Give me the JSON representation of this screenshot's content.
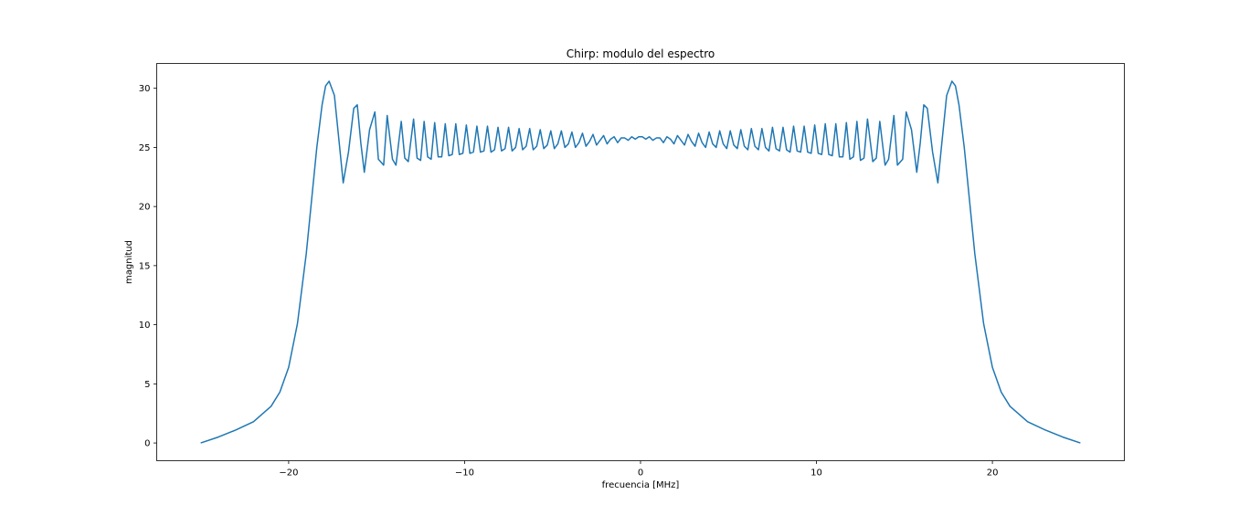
{
  "chart_data": {
    "type": "line",
    "title": "Chirp: modulo del espectro",
    "xlabel": "frecuencia [MHz]",
    "ylabel": "magnitud",
    "xlim": [
      -27.5,
      27.5
    ],
    "ylim": [
      -1.5,
      32.1
    ],
    "xticks": [
      -20,
      -10,
      0,
      10,
      20
    ],
    "xtick_labels": [
      "−20",
      "−10",
      "0",
      "10",
      "20"
    ],
    "yticks": [
      0,
      5,
      10,
      15,
      20,
      25,
      30
    ],
    "ytick_labels": [
      "0",
      "5",
      "10",
      "15",
      "20",
      "25",
      "30"
    ],
    "grid": false,
    "legend": "none",
    "line_color": "#1f77b4",
    "series": [
      {
        "x": [
          -25.0,
          -24.0,
          -23.0,
          -22.0,
          -21.0,
          -20.5,
          -20.0,
          -19.5,
          -19.0,
          -18.7,
          -18.4,
          -18.1,
          -17.9,
          -17.7,
          -17.4,
          -17.1,
          -16.9,
          -16.6,
          -16.3,
          -16.1,
          -15.9,
          -15.7,
          -15.4,
          -15.1,
          -14.9,
          -14.6,
          -14.4,
          -14.1,
          -13.9,
          -13.6,
          -13.4,
          -13.2,
          -12.9,
          -12.7,
          -12.5,
          -12.3,
          -12.1,
          -11.9,
          -11.7,
          -11.5,
          -11.3,
          -11.1,
          -10.9,
          -10.7,
          -10.5,
          -10.3,
          -10.1,
          -9.9,
          -9.7,
          -9.5,
          -9.3,
          -9.1,
          -8.9,
          -8.7,
          -8.5,
          -8.3,
          -8.1,
          -7.9,
          -7.7,
          -7.5,
          -7.3,
          -7.1,
          -6.9,
          -6.7,
          -6.5,
          -6.3,
          -6.1,
          -5.9,
          -5.7,
          -5.5,
          -5.3,
          -5.1,
          -4.9,
          -4.7,
          -4.5,
          -4.3,
          -4.1,
          -3.9,
          -3.7,
          -3.5,
          -3.3,
          -3.1,
          -2.9,
          -2.7,
          -2.5,
          -2.3,
          -2.1,
          -1.9,
          -1.7,
          -1.5,
          -1.3,
          -1.1,
          -0.9,
          -0.7,
          -0.5,
          -0.3,
          -0.1,
          0.1,
          0.3,
          0.5,
          0.7,
          0.9,
          1.1,
          1.3,
          1.5,
          1.7,
          1.9,
          2.1,
          2.3,
          2.5,
          2.7,
          2.9,
          3.1,
          3.3,
          3.5,
          3.7,
          3.9,
          4.1,
          4.3,
          4.5,
          4.7,
          4.9,
          5.1,
          5.3,
          5.5,
          5.7,
          5.9,
          6.1,
          6.3,
          6.5,
          6.7,
          6.9,
          7.1,
          7.3,
          7.5,
          7.7,
          7.9,
          8.1,
          8.3,
          8.5,
          8.7,
          8.9,
          9.1,
          9.3,
          9.5,
          9.7,
          9.9,
          10.1,
          10.3,
          10.5,
          10.7,
          10.9,
          11.1,
          11.3,
          11.5,
          11.7,
          11.9,
          12.1,
          12.3,
          12.5,
          12.7,
          12.9,
          13.2,
          13.4,
          13.6,
          13.9,
          14.1,
          14.4,
          14.6,
          14.9,
          15.1,
          15.4,
          15.7,
          15.9,
          16.1,
          16.3,
          16.6,
          16.9,
          17.1,
          17.4,
          17.7,
          17.9,
          18.1,
          18.4,
          18.7,
          19.0,
          19.5,
          20.0,
          20.5,
          21.0,
          22.0,
          23.0,
          24.0,
          25.0
        ],
        "y": [
          0.0,
          0.5,
          1.1,
          1.8,
          3.1,
          4.3,
          6.4,
          10.1,
          16.0,
          20.5,
          25.0,
          28.6,
          30.2,
          30.6,
          29.4,
          25.0,
          22.0,
          24.6,
          28.3,
          28.6,
          25.4,
          22.9,
          26.5,
          28.0,
          24.0,
          23.5,
          27.7,
          24.0,
          23.5,
          27.2,
          24.1,
          23.8,
          27.4,
          24.1,
          23.9,
          27.2,
          24.2,
          24.0,
          27.1,
          24.2,
          24.2,
          27.0,
          24.3,
          24.4,
          27.0,
          24.4,
          24.5,
          26.9,
          24.5,
          24.6,
          26.8,
          24.6,
          24.7,
          26.8,
          24.6,
          24.8,
          26.7,
          24.7,
          24.9,
          26.7,
          24.7,
          25.0,
          26.6,
          24.8,
          25.1,
          26.6,
          24.8,
          25.1,
          26.5,
          24.9,
          25.2,
          26.4,
          24.9,
          25.3,
          26.4,
          25.0,
          25.3,
          26.3,
          25.0,
          25.4,
          26.2,
          25.1,
          25.5,
          26.1,
          25.2,
          25.6,
          26.0,
          25.3,
          25.7,
          25.9,
          25.4,
          25.8,
          25.8,
          25.6,
          25.9,
          25.7,
          25.9,
          25.9,
          25.7,
          25.9,
          25.6,
          25.8,
          25.8,
          25.4,
          25.9,
          25.7,
          25.3,
          26.0,
          25.6,
          25.2,
          26.1,
          25.5,
          25.1,
          26.2,
          25.4,
          25.0,
          26.3,
          25.3,
          25.0,
          26.4,
          25.3,
          24.9,
          26.4,
          25.2,
          24.9,
          26.5,
          25.1,
          24.8,
          26.6,
          25.1,
          24.8,
          26.6,
          25.0,
          24.7,
          26.7,
          24.9,
          24.7,
          26.7,
          24.8,
          24.6,
          26.8,
          24.7,
          24.6,
          26.8,
          24.6,
          24.5,
          26.9,
          24.5,
          24.4,
          27.0,
          24.4,
          24.3,
          27.0,
          24.2,
          24.2,
          27.1,
          24.0,
          24.2,
          27.2,
          23.9,
          24.1,
          27.4,
          23.8,
          24.1,
          27.2,
          23.5,
          24.0,
          27.7,
          23.5,
          24.0,
          28.0,
          26.5,
          22.9,
          25.4,
          28.6,
          28.3,
          24.6,
          22.0,
          25.0,
          29.4,
          30.6,
          30.2,
          28.6,
          25.0,
          20.5,
          16.0,
          10.1,
          6.4,
          4.3,
          3.1,
          1.8,
          1.1,
          0.5,
          0.0
        ]
      }
    ]
  }
}
